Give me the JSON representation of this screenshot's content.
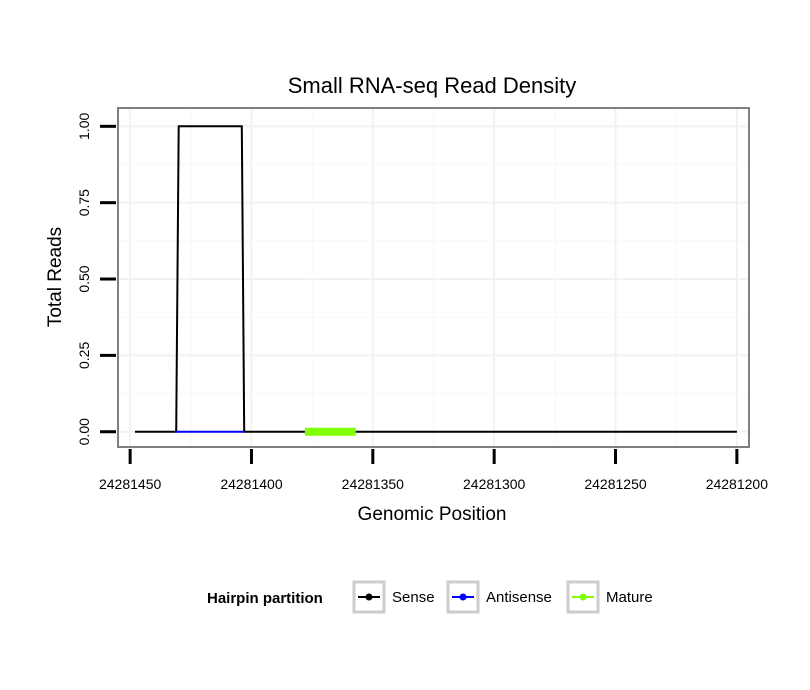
{
  "chart_data": {
    "type": "line",
    "title": "Small RNA-seq Read Density",
    "xlabel": "Genomic Position",
    "ylabel": "Total Reads",
    "xlim": [
      24281455,
      24281195
    ],
    "ylim": [
      -0.05,
      1.06
    ],
    "x_ticks": [
      24281450,
      24281400,
      24281350,
      24281300,
      24281250,
      24281200
    ],
    "x_tick_labels": [
      "24281450",
      "24281400",
      "24281350",
      "24281300",
      "24281250",
      "24281200"
    ],
    "y_ticks": [
      0,
      0.25,
      0.5,
      0.75,
      1
    ],
    "y_tick_labels": [
      "0.00",
      "0.25",
      "0.50",
      "0.75",
      "1.00"
    ],
    "grid": true,
    "colors": {
      "Sense": "#000000",
      "Antisense": "#0000ff",
      "Mature": "#80ff00"
    },
    "series": [
      {
        "name": "Sense",
        "x": [
          24281448,
          24281431,
          24281430,
          24281404,
          24281403,
          24281200
        ],
        "y": [
          0,
          0,
          1,
          1,
          0,
          0
        ]
      },
      {
        "name": "Antisense",
        "x": [
          24281431,
          24281403
        ],
        "y": [
          0,
          0
        ]
      },
      {
        "name": "Mature",
        "x": [
          24281378,
          24281357
        ],
        "y": [
          0,
          0
        ]
      }
    ],
    "legend": {
      "title": "Hairpin partition",
      "entries": [
        "Sense",
        "Antisense",
        "Mature"
      ],
      "position": "bottom"
    }
  }
}
